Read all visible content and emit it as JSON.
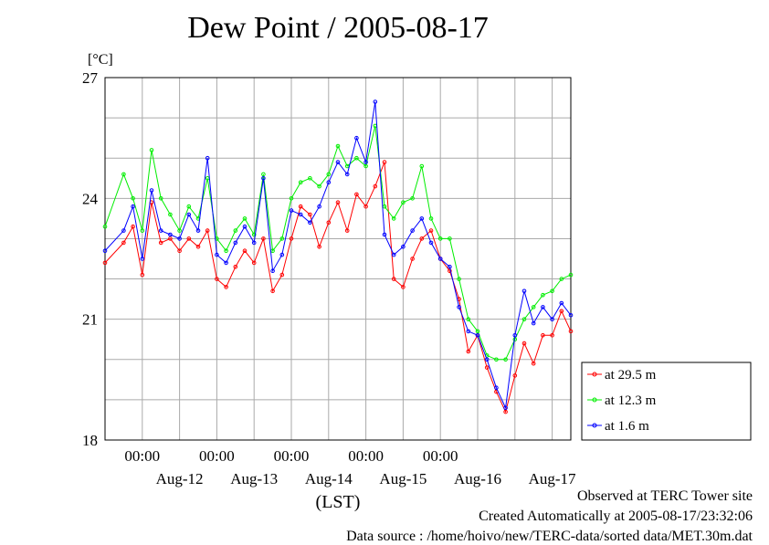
{
  "chart_data": {
    "type": "line",
    "title": "Dew Point / 2005-08-17",
    "ylabel": "[°C]",
    "xlabel": "(LST)",
    "ylim": [
      18,
      27
    ],
    "yticks": [
      18,
      21,
      24,
      27
    ],
    "xlim": [
      "2005-08-11 12:00",
      "2005-08-17 18:00"
    ],
    "xtick_labels_top": [
      "00:00",
      "00:00",
      "00:00",
      "00:00",
      "00:00"
    ],
    "xtick_labels_bottom": [
      "Aug-12",
      "Aug-13",
      "Aug-14",
      "Aug-15",
      "Aug-16",
      "Aug-17"
    ],
    "grid": true,
    "legend_position": "right",
    "series": [
      {
        "name": "at 29.5 m",
        "color": "#ff0000",
        "x": [
          "2005-08-11 12:00",
          "2005-08-11 18:00",
          "2005-08-11 21:00",
          "2005-08-12 00:00",
          "2005-08-12 03:00",
          "2005-08-12 06:00",
          "2005-08-12 09:00",
          "2005-08-12 12:00",
          "2005-08-12 15:00",
          "2005-08-12 18:00",
          "2005-08-12 21:00",
          "2005-08-13 00:00",
          "2005-08-13 03:00",
          "2005-08-13 06:00",
          "2005-08-13 09:00",
          "2005-08-13 12:00",
          "2005-08-13 15:00",
          "2005-08-13 18:00",
          "2005-08-13 21:00",
          "2005-08-14 00:00",
          "2005-08-14 03:00",
          "2005-08-14 06:00",
          "2005-08-14 09:00",
          "2005-08-14 12:00",
          "2005-08-14 15:00",
          "2005-08-14 18:00",
          "2005-08-14 21:00",
          "2005-08-15 00:00",
          "2005-08-15 03:00",
          "2005-08-15 06:00",
          "2005-08-15 09:00",
          "2005-08-15 12:00",
          "2005-08-15 15:00",
          "2005-08-15 18:00",
          "2005-08-15 21:00",
          "2005-08-16 00:00",
          "2005-08-16 03:00",
          "2005-08-16 06:00",
          "2005-08-16 09:00",
          "2005-08-16 12:00",
          "2005-08-16 15:00",
          "2005-08-16 18:00",
          "2005-08-16 21:00",
          "2005-08-17 00:00",
          "2005-08-17 03:00",
          "2005-08-17 06:00",
          "2005-08-17 09:00",
          "2005-08-17 12:00",
          "2005-08-17 15:00",
          "2005-08-17 18:00"
        ],
        "y": [
          22.4,
          22.9,
          23.3,
          22.1,
          23.9,
          22.9,
          23.0,
          22.7,
          23.0,
          22.8,
          23.2,
          22.0,
          21.8,
          22.3,
          22.7,
          22.4,
          23.0,
          21.7,
          22.1,
          23.0,
          23.8,
          23.6,
          22.8,
          23.4,
          23.9,
          23.2,
          24.1,
          23.8,
          24.3,
          24.9,
          22.0,
          21.8,
          22.5,
          23.0,
          23.2,
          22.5,
          22.2,
          21.5,
          20.2,
          20.6,
          19.8,
          19.2,
          18.7,
          19.6,
          20.4,
          19.9,
          20.6,
          20.6,
          21.2,
          20.7
        ]
      },
      {
        "name": "at 12.3 m",
        "color": "#00ee00",
        "x": [
          "2005-08-11 12:00",
          "2005-08-11 18:00",
          "2005-08-11 21:00",
          "2005-08-12 00:00",
          "2005-08-12 03:00",
          "2005-08-12 06:00",
          "2005-08-12 09:00",
          "2005-08-12 12:00",
          "2005-08-12 15:00",
          "2005-08-12 18:00",
          "2005-08-12 21:00",
          "2005-08-13 00:00",
          "2005-08-13 03:00",
          "2005-08-13 06:00",
          "2005-08-13 09:00",
          "2005-08-13 12:00",
          "2005-08-13 15:00",
          "2005-08-13 18:00",
          "2005-08-13 21:00",
          "2005-08-14 00:00",
          "2005-08-14 03:00",
          "2005-08-14 06:00",
          "2005-08-14 09:00",
          "2005-08-14 12:00",
          "2005-08-14 15:00",
          "2005-08-14 18:00",
          "2005-08-14 21:00",
          "2005-08-15 00:00",
          "2005-08-15 03:00",
          "2005-08-15 06:00",
          "2005-08-15 09:00",
          "2005-08-15 12:00",
          "2005-08-15 15:00",
          "2005-08-15 18:00",
          "2005-08-15 21:00",
          "2005-08-16 00:00",
          "2005-08-16 03:00",
          "2005-08-16 06:00",
          "2005-08-16 09:00",
          "2005-08-16 12:00",
          "2005-08-16 15:00",
          "2005-08-16 18:00",
          "2005-08-16 21:00",
          "2005-08-17 00:00",
          "2005-08-17 03:00",
          "2005-08-17 06:00",
          "2005-08-17 09:00",
          "2005-08-17 12:00",
          "2005-08-17 15:00",
          "2005-08-17 18:00"
        ],
        "y": [
          23.3,
          24.6,
          24.0,
          23.2,
          25.2,
          24.0,
          23.6,
          23.2,
          23.8,
          23.5,
          24.5,
          23.0,
          22.7,
          23.2,
          23.5,
          23.1,
          24.6,
          22.7,
          23.0,
          24.0,
          24.4,
          24.5,
          24.3,
          24.6,
          25.3,
          24.8,
          25.0,
          24.8,
          25.8,
          23.8,
          23.5,
          23.9,
          24.0,
          24.8,
          23.5,
          23.0,
          23.0,
          22.0,
          21.0,
          20.7,
          20.1,
          20.0,
          20.0,
          20.5,
          21.0,
          21.3,
          21.6,
          21.7,
          22.0,
          22.1
        ]
      },
      {
        "name": "at 1.6 m",
        "color": "#0000ff",
        "x": [
          "2005-08-11 12:00",
          "2005-08-11 18:00",
          "2005-08-11 21:00",
          "2005-08-12 00:00",
          "2005-08-12 03:00",
          "2005-08-12 06:00",
          "2005-08-12 09:00",
          "2005-08-12 12:00",
          "2005-08-12 15:00",
          "2005-08-12 18:00",
          "2005-08-12 21:00",
          "2005-08-13 00:00",
          "2005-08-13 03:00",
          "2005-08-13 06:00",
          "2005-08-13 09:00",
          "2005-08-13 12:00",
          "2005-08-13 15:00",
          "2005-08-13 18:00",
          "2005-08-13 21:00",
          "2005-08-14 00:00",
          "2005-08-14 03:00",
          "2005-08-14 06:00",
          "2005-08-14 09:00",
          "2005-08-14 12:00",
          "2005-08-14 15:00",
          "2005-08-14 18:00",
          "2005-08-14 21:00",
          "2005-08-15 00:00",
          "2005-08-15 03:00",
          "2005-08-15 06:00",
          "2005-08-15 09:00",
          "2005-08-15 12:00",
          "2005-08-15 15:00",
          "2005-08-15 18:00",
          "2005-08-15 21:00",
          "2005-08-16 00:00",
          "2005-08-16 03:00",
          "2005-08-16 06:00",
          "2005-08-16 09:00",
          "2005-08-16 12:00",
          "2005-08-16 15:00",
          "2005-08-16 18:00",
          "2005-08-16 21:00",
          "2005-08-17 00:00",
          "2005-08-17 03:00",
          "2005-08-17 06:00",
          "2005-08-17 09:00",
          "2005-08-17 12:00",
          "2005-08-17 15:00",
          "2005-08-17 18:00"
        ],
        "y": [
          22.7,
          23.2,
          23.8,
          22.5,
          24.2,
          23.2,
          23.1,
          23.0,
          23.6,
          23.2,
          25.0,
          22.6,
          22.4,
          22.9,
          23.3,
          22.9,
          24.5,
          22.2,
          22.6,
          23.7,
          23.6,
          23.4,
          23.8,
          24.4,
          24.9,
          24.6,
          25.5,
          24.9,
          26.4,
          23.1,
          22.6,
          22.8,
          23.2,
          23.5,
          22.9,
          22.5,
          22.3,
          21.3,
          20.7,
          20.6,
          20.0,
          19.3,
          18.8,
          20.6,
          21.7,
          20.9,
          21.3,
          21.0,
          21.4,
          21.1
        ]
      }
    ]
  },
  "footer": {
    "line1": "Observed at TERC Tower site",
    "line2": "Created Automatically at 2005-08-17/23:32:06",
    "line3": "Data source : /home/hoivo/new/TERC-data/sorted  data/MET.30m.dat"
  }
}
